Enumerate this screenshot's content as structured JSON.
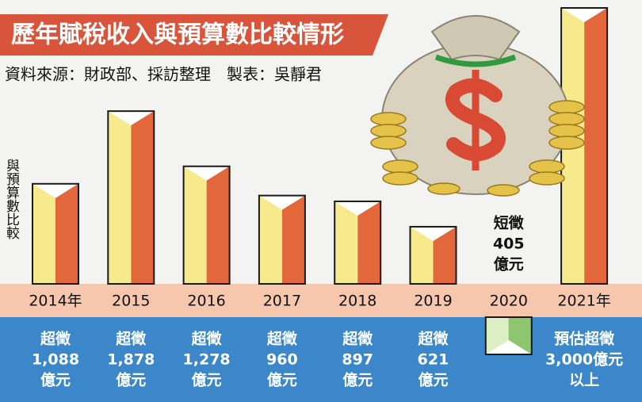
{
  "chart_data": {
    "type": "bar",
    "title": "歷年賦稅收入與預算數比較情形",
    "subtitle": "資料來源：財政部、採訪整理　製表：吳靜君",
    "y_label": "與預算數比較",
    "categories": [
      "2014年",
      "2015",
      "2016",
      "2017",
      "2018",
      "2019",
      "2020",
      "2021年"
    ],
    "values": [
      1088,
      1878,
      1278,
      960,
      897,
      621,
      -405,
      3000
    ],
    "value_labels": [
      [
        "超徵",
        "1,088",
        "億元"
      ],
      [
        "超徵",
        "1,878",
        "億元"
      ],
      [
        "超徵",
        "1,278",
        "億元"
      ],
      [
        "超徵",
        "960",
        "億元"
      ],
      [
        "超徵",
        "897",
        "億元"
      ],
      [
        "超徵",
        "621",
        "億元"
      ],
      [
        "短徵",
        "405",
        "億元"
      ],
      [
        "預估超徵",
        "3,000億元",
        "以上"
      ]
    ],
    "colors": [
      "#f7ea8c",
      "#e2683c"
    ],
    "negative_colors": [
      "#dcefc4",
      "#8dc66f"
    ]
  }
}
